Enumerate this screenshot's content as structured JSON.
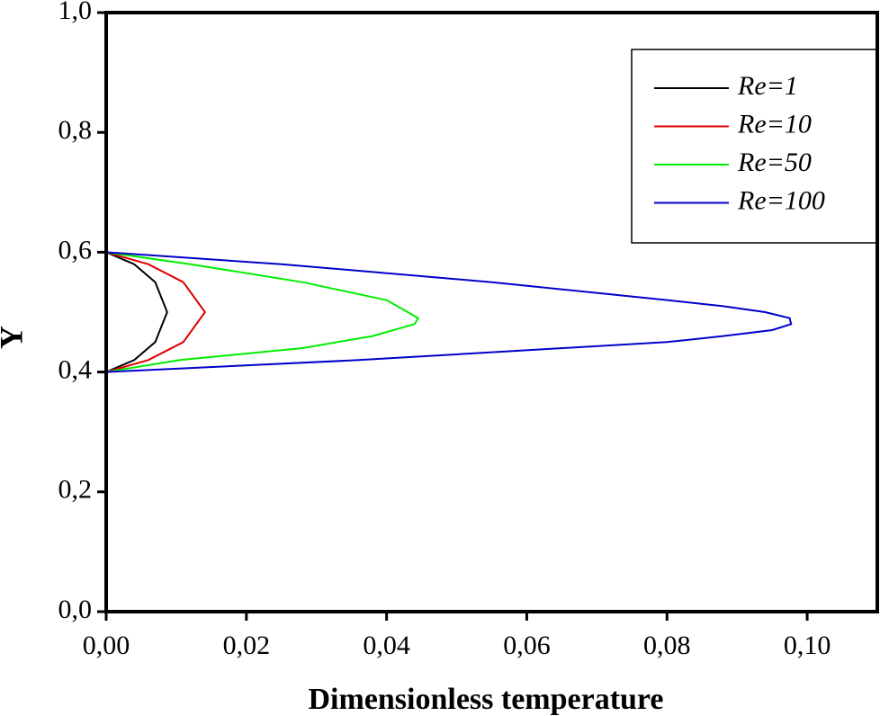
{
  "chart_data": {
    "type": "line",
    "xlabel": "Dimensionless temperature",
    "ylabel": "Y",
    "xlim": [
      0,
      0.11
    ],
    "ylim": [
      0,
      1
    ],
    "xticks": [
      {
        "value": 0,
        "label": "0,00"
      },
      {
        "value": 0.02,
        "label": "0,02"
      },
      {
        "value": 0.04,
        "label": "0,04"
      },
      {
        "value": 0.06,
        "label": "0,06"
      },
      {
        "value": 0.08,
        "label": "0,08"
      },
      {
        "value": 0.1,
        "label": "0,10"
      }
    ],
    "yticks": [
      {
        "value": 0,
        "label": "0,0"
      },
      {
        "value": 0.2,
        "label": "0,2"
      },
      {
        "value": 0.4,
        "label": "0,4"
      },
      {
        "value": 0.6,
        "label": "0,6"
      },
      {
        "value": 0.8,
        "label": "0,8"
      },
      {
        "value": 1,
        "label": "1,0"
      }
    ],
    "grid": false,
    "legend": "upper right",
    "series": [
      {
        "name": "Re=1",
        "color": "#000000",
        "x": [
          0,
          0,
          0.004,
          0.007,
          0.0087,
          0.007,
          0.004,
          0,
          0
        ],
        "y": [
          0,
          0.4,
          0.42,
          0.45,
          0.5,
          0.55,
          0.58,
          0.6,
          1
        ]
      },
      {
        "name": "Re=10",
        "color": "#dd0000",
        "x": [
          0,
          0,
          0.006,
          0.011,
          0.0141,
          0.011,
          0.006,
          0,
          0
        ],
        "y": [
          0,
          0.4,
          0.42,
          0.45,
          0.5,
          0.55,
          0.58,
          0.6,
          1
        ]
      },
      {
        "name": "Re=50",
        "color": "#00ee00",
        "x": [
          0,
          0,
          0.0105,
          0.028,
          0.038,
          0.044,
          0.0445,
          0.04,
          0.028,
          0.012,
          0,
          0
        ],
        "y": [
          0,
          0.4,
          0.42,
          0.44,
          0.46,
          0.48,
          0.49,
          0.52,
          0.55,
          0.58,
          0.6,
          1
        ]
      },
      {
        "name": "Re=100",
        "color": "#0000cc",
        "x": [
          0,
          0,
          0.036,
          0.08,
          0.088,
          0.095,
          0.0977,
          0.0975,
          0.094,
          0.088,
          0.08,
          0.055,
          0.025,
          0,
          0
        ],
        "y": [
          0,
          0.4,
          0.42,
          0.45,
          0.46,
          0.47,
          0.48,
          0.49,
          0.5,
          0.51,
          0.52,
          0.55,
          0.58,
          0.6,
          1
        ]
      }
    ]
  }
}
